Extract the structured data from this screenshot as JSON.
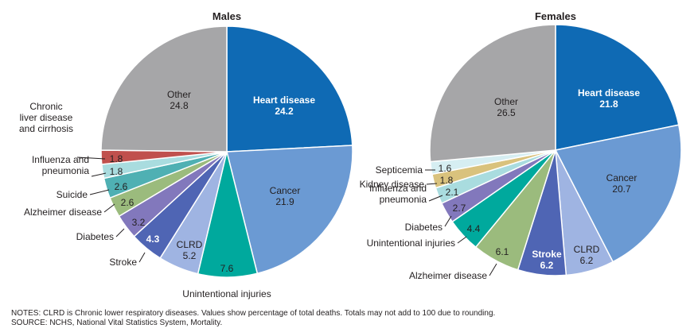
{
  "chart_data": [
    {
      "type": "pie",
      "title": "Males",
      "series": [
        {
          "name": "",
          "slices": [
            {
              "label": "Heart disease",
              "value": 24.2,
              "color": "#0f6ab4"
            },
            {
              "label": "Cancer",
              "value": 21.9,
              "color": "#6b9ad3"
            },
            {
              "label": "Unintentional injuries",
              "value": 7.6,
              "color": "#00a99d"
            },
            {
              "label": "CLRD",
              "value": 5.2,
              "color": "#9fb4e2"
            },
            {
              "label": "Stroke",
              "value": 4.3,
              "color": "#4f65b4"
            },
            {
              "label": "Diabetes",
              "value": 3.2,
              "color": "#8278bc"
            },
            {
              "label": "Alzheimer disease",
              "value": 2.6,
              "color": "#9bbb7d"
            },
            {
              "label": "Suicide",
              "value": 2.6,
              "color": "#4fb0b3"
            },
            {
              "label": "Influenza and pneumonia",
              "value": 1.8,
              "color": "#a9dcdf"
            },
            {
              "label": "Chronic liver disease and cirrhosis",
              "value": 1.8,
              "color": "#c0504d"
            },
            {
              "label": "Other",
              "value": 24.8,
              "color": "#a6a6a8"
            }
          ]
        }
      ]
    },
    {
      "type": "pie",
      "title": "Females",
      "series": [
        {
          "name": "",
          "slices": [
            {
              "label": "Heart disease",
              "value": 21.8,
              "color": "#0f6ab4"
            },
            {
              "label": "Cancer",
              "value": 20.7,
              "color": "#6b9ad3"
            },
            {
              "label": "CLRD",
              "value": 6.2,
              "color": "#9fb4e2"
            },
            {
              "label": "Stroke",
              "value": 6.2,
              "color": "#4f65b4"
            },
            {
              "label": "Alzheimer disease",
              "value": 6.1,
              "color": "#9bbb7d"
            },
            {
              "label": "Unintentional injuries",
              "value": 4.4,
              "color": "#00a99d"
            },
            {
              "label": "Diabetes",
              "value": 2.7,
              "color": "#8278bc"
            },
            {
              "label": "Influenza and pneumonia",
              "value": 2.1,
              "color": "#a9dcdf"
            },
            {
              "label": "Kidney disease",
              "value": 1.8,
              "color": "#d9c27d"
            },
            {
              "label": "Septicemia",
              "value": 1.6,
              "color": "#d6eef2"
            },
            {
              "label": "Other",
              "value": 26.5,
              "color": "#a6a6a8"
            }
          ]
        }
      ]
    }
  ],
  "notes": {
    "line1": "NOTES: CLRD is Chronic lower respiratory diseases. Values show percentage of total deaths. Totals may not add to 100 due to rounding.",
    "line2": "SOURCE: NCHS, National Vital Statistics System, Mortality."
  }
}
